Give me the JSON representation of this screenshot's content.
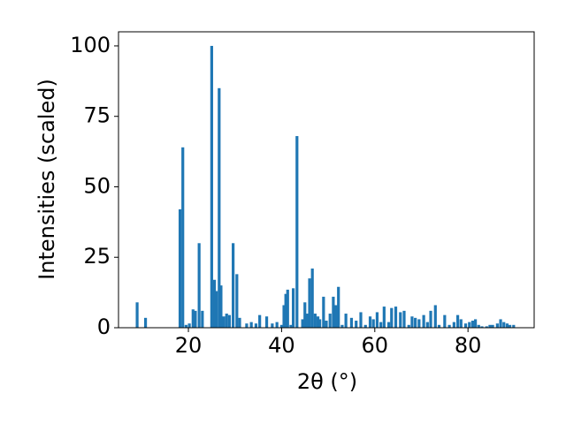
{
  "chart_data": {
    "type": "bar",
    "xlabel": "2θ (°)",
    "ylabel": "Intensities (scaled)",
    "color": "#1f77b4",
    "xlim": [
      5,
      94.2
    ],
    "ylim": [
      0,
      105
    ],
    "xticks": [
      20,
      40,
      60,
      80
    ],
    "yticks": [
      0,
      25,
      50,
      75,
      100
    ],
    "x": [
      9.0,
      10.8,
      18.2,
      18.8,
      19.5,
      20.2,
      21.0,
      21.5,
      22.3,
      23.0,
      25.0,
      25.6,
      26.0,
      26.6,
      27.0,
      27.6,
      28.2,
      28.8,
      29.6,
      30.4,
      31.0,
      32.5,
      33.5,
      34.5,
      35.3,
      36.8,
      38.0,
      39.0,
      40.0,
      40.5,
      40.9,
      41.3,
      42.0,
      42.5,
      43.3,
      44.5,
      45.0,
      45.5,
      46.0,
      46.6,
      47.2,
      47.8,
      48.2,
      49.0,
      49.6,
      50.4,
      51.1,
      51.7,
      52.2,
      53.0,
      53.8,
      55.0,
      56.0,
      57.0,
      58.0,
      59.0,
      59.7,
      60.5,
      61.3,
      62.0,
      63.0,
      63.6,
      64.5,
      65.5,
      66.3,
      67.3,
      68.0,
      68.7,
      69.5,
      70.5,
      71.3,
      72.0,
      73.0,
      73.8,
      75.0,
      76.0,
      77.0,
      77.8,
      78.5,
      79.5,
      80.3,
      81.0,
      81.6,
      82.3,
      83.0,
      84.0,
      84.7,
      85.3,
      86.3,
      87.0,
      87.7,
      88.4,
      89.0,
      89.8
    ],
    "values": [
      9,
      3.5,
      42,
      64,
      1,
      1.5,
      6.5,
      6,
      30,
      6,
      100,
      17,
      13,
      85,
      15,
      4,
      5,
      4.5,
      30,
      19,
      3.5,
      1.5,
      2,
      1.5,
      4.5,
      4,
      1.5,
      2,
      1,
      8,
      12,
      13.5,
      1,
      14,
      68,
      3,
      9,
      5,
      17.5,
      21,
      5,
      4,
      3,
      11,
      2.5,
      5,
      11,
      8,
      14.5,
      1,
      5,
      3.5,
      2.5,
      5.5,
      1,
      4,
      3,
      5.5,
      2,
      7.5,
      2,
      7,
      7.5,
      5.5,
      6,
      1,
      4,
      3.5,
      3,
      4.5,
      2,
      6,
      8,
      1,
      4.5,
      1,
      2,
      4.5,
      3,
      1.5,
      2,
      2.5,
      3,
      1,
      0.5,
      0.5,
      1,
      1,
      1.5,
      3,
      2,
      1.5,
      1,
      1
    ]
  }
}
